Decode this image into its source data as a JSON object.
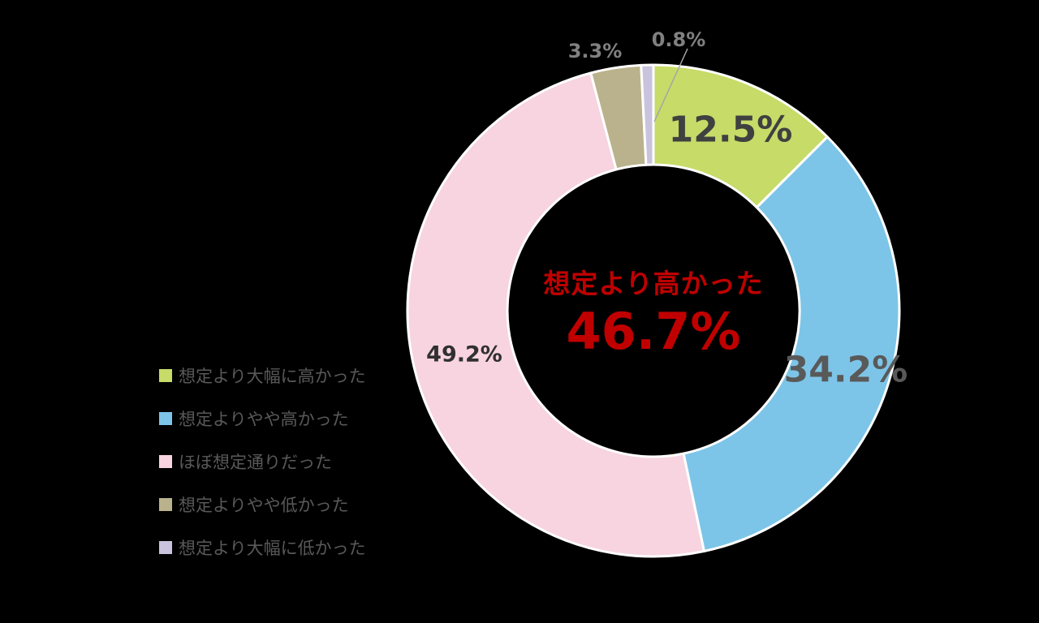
{
  "chart_data": {
    "type": "pie",
    "subtype": "donut",
    "title": "",
    "direction": "clockwise",
    "start_angle_deg": 0,
    "legend_position": "left",
    "background_color": "#000000",
    "segment_border_color": "#ffffff",
    "segments": [
      {
        "label": "想定より大幅に高かった",
        "value": 12.5,
        "display": "12.5%",
        "color": "#c6db68"
      },
      {
        "label": "想定よりやや高かった",
        "value": 34.2,
        "display": "34.2%",
        "color": "#7dc5e8"
      },
      {
        "label": "ほぼ想定通りだった",
        "value": 49.2,
        "display": "49.2%",
        "color": "#f7d4df"
      },
      {
        "label": "想定よりやや低かった",
        "value": 3.3,
        "display": "3.3%",
        "color": "#bab28c"
      },
      {
        "label": "想定より大幅に低かった",
        "value": 0.8,
        "display": "0.8%",
        "color": "#c9c3dd"
      }
    ],
    "center": {
      "title": "想定より高かった",
      "value": "46.7%",
      "color": "#c00000"
    }
  }
}
